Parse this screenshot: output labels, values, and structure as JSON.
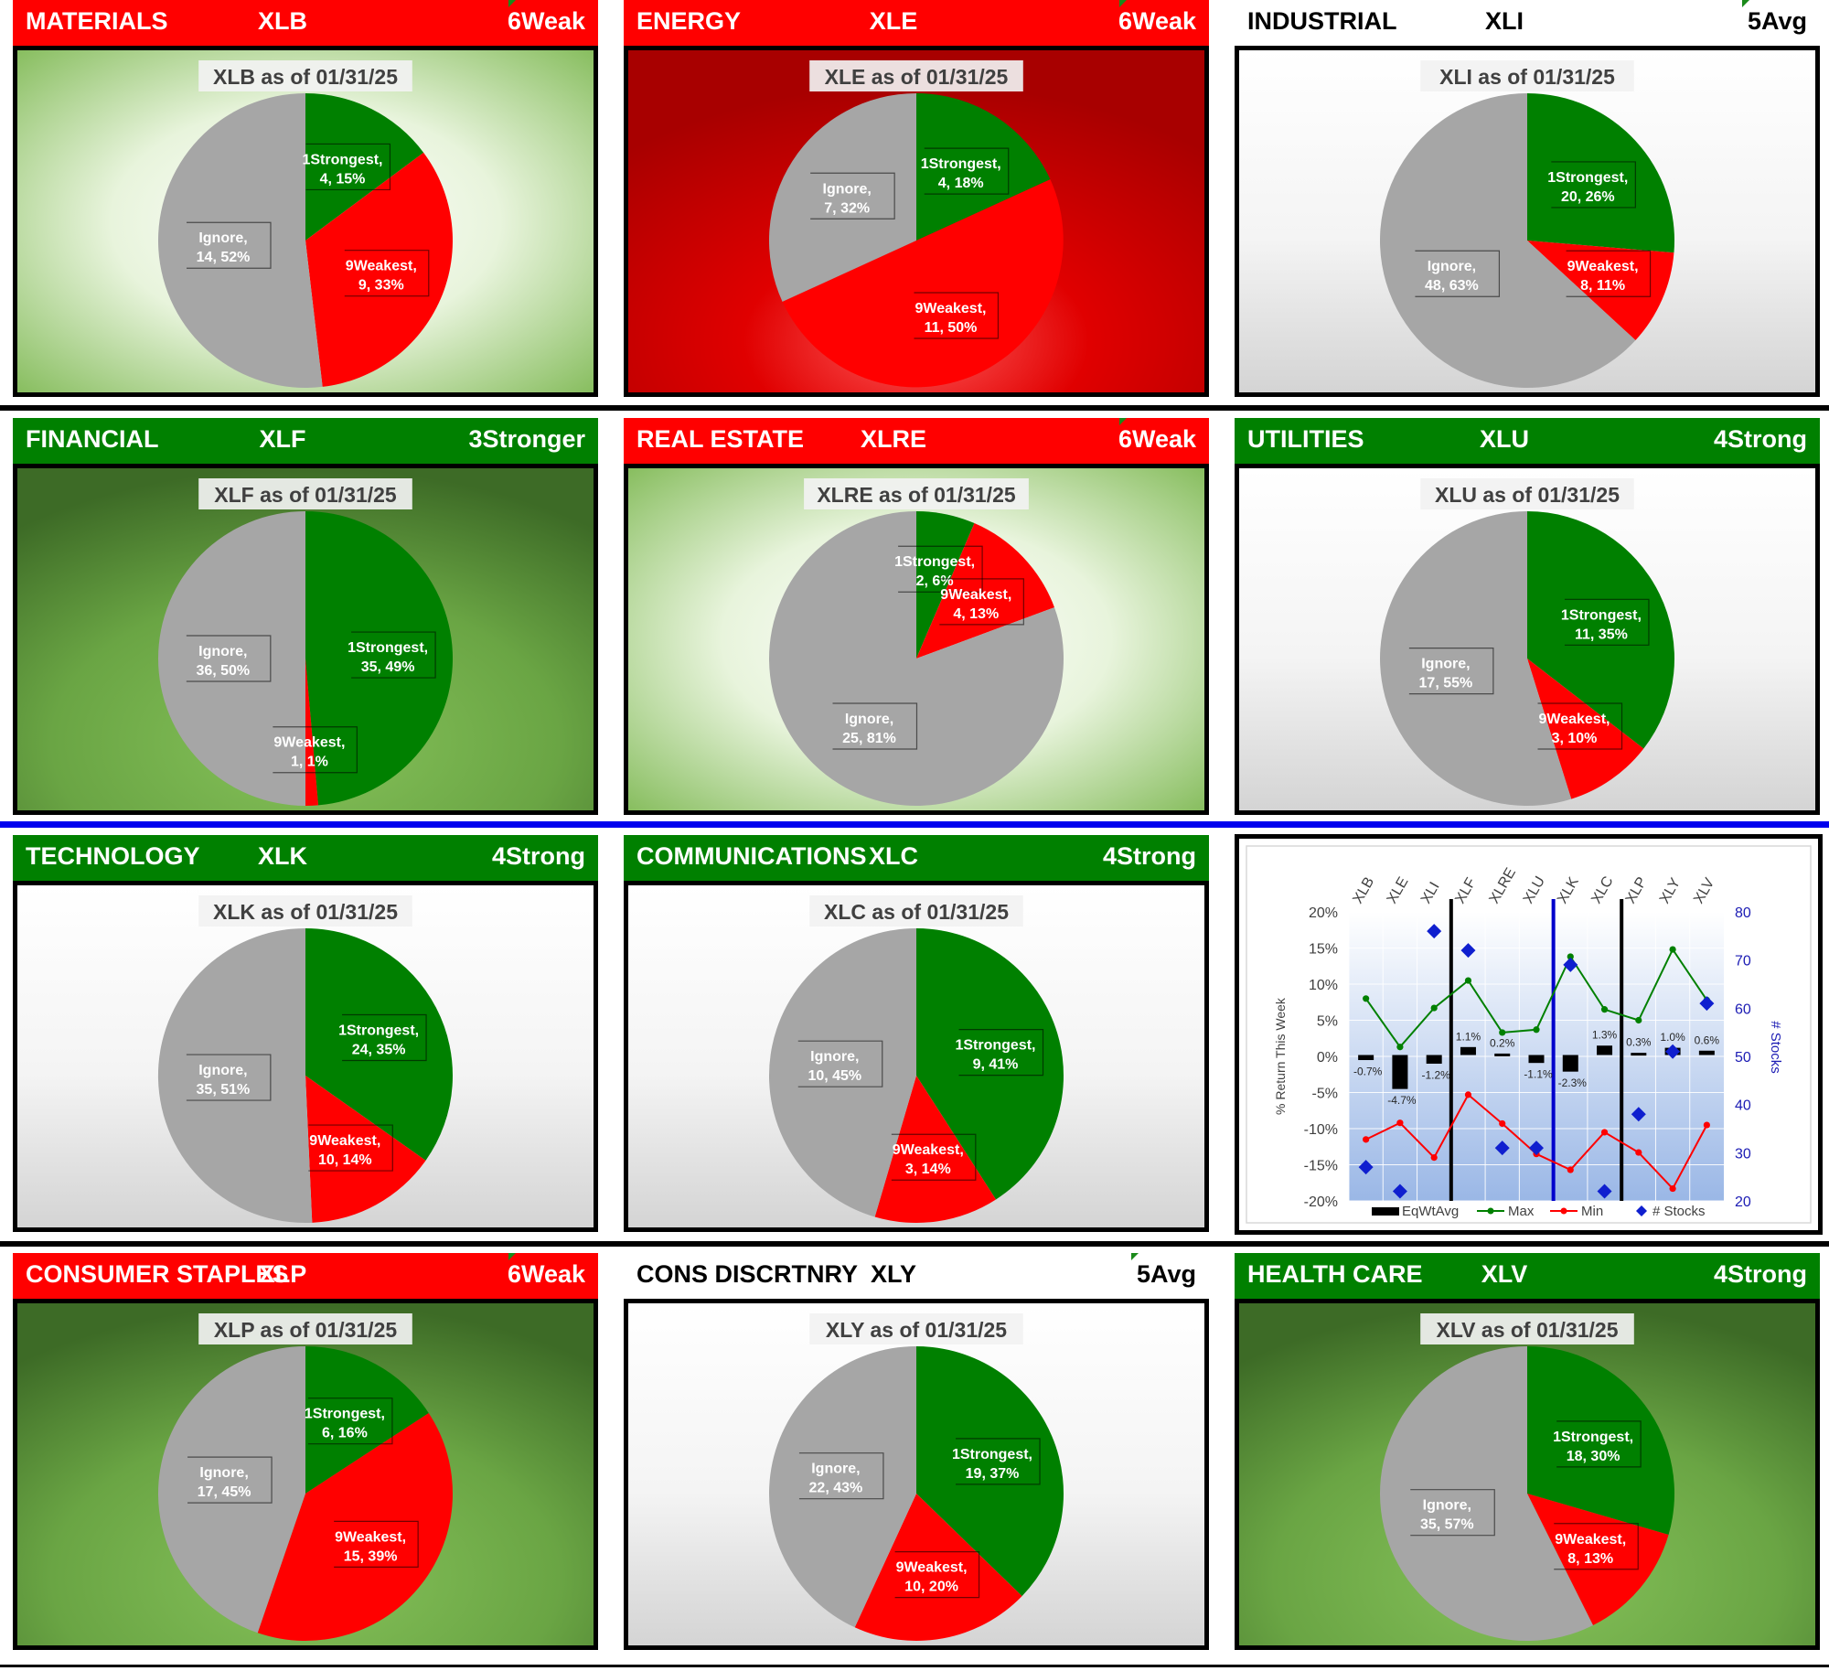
{
  "as_of_suffix": "as of 01/31/25",
  "colors": {
    "green": "#008000",
    "red": "#ff0000",
    "gray": "#a6a6a6",
    "blue": "#0000cc"
  },
  "sectors": [
    {
      "name": "MATERIALS",
      "ticker": "XLB",
      "rating": "6Weak",
      "header": "red",
      "title": "XLB as of 01/31/25",
      "bg": "lightgreen",
      "slices": [
        {
          "label": "1Strongest",
          "count": 4,
          "pct": "15%"
        },
        {
          "label": "9Weakest",
          "count": 9,
          "pct": "33%"
        },
        {
          "label": "Ignore",
          "count": 14,
          "pct": "52%"
        }
      ]
    },
    {
      "name": "ENERGY",
      "ticker": "XLE",
      "rating": "6Weak",
      "header": "red",
      "title": "XLE as of 01/31/25",
      "bg": "red",
      "slices": [
        {
          "label": "1Strongest",
          "count": 4,
          "pct": "18%"
        },
        {
          "label": "9Weakest",
          "count": 11,
          "pct": "50%"
        },
        {
          "label": "Ignore",
          "count": 7,
          "pct": "32%"
        }
      ]
    },
    {
      "name": "INDUSTRIAL",
      "ticker": "XLI",
      "rating": "5Avg",
      "header": "white",
      "title": "XLI as of 01/31/25",
      "bg": "white",
      "slices": [
        {
          "label": "1Strongest",
          "count": 20,
          "pct": "26%"
        },
        {
          "label": "9Weakest",
          "count": 8,
          "pct": "11%"
        },
        {
          "label": "Ignore",
          "count": 48,
          "pct": "63%"
        }
      ]
    },
    {
      "name": "FINANCIAL",
      "ticker": "XLF",
      "rating": "3Stronger",
      "header": "green",
      "title": "XLF as of 01/31/25",
      "bg": "darkgreen",
      "slices": [
        {
          "label": "1Strongest",
          "count": 35,
          "pct": "49%"
        },
        {
          "label": "9Weakest",
          "count": 1,
          "pct": "1%"
        },
        {
          "label": "Ignore",
          "count": 36,
          "pct": "50%"
        }
      ]
    },
    {
      "name": "REAL ESTATE",
      "ticker": "XLRE",
      "rating": "6Weak",
      "header": "red",
      "title": "XLRE as of 01/31/25",
      "bg": "lightgreen",
      "slices": [
        {
          "label": "1Strongest",
          "count": 2,
          "pct": "6%"
        },
        {
          "label": "9Weakest",
          "count": 4,
          "pct": "13%"
        },
        {
          "label": "Ignore",
          "count": 25,
          "pct": "81%"
        }
      ]
    },
    {
      "name": "UTILITIES",
      "ticker": "XLU",
      "rating": "4Strong",
      "header": "green",
      "title": "XLU as of 01/31/25",
      "bg": "white",
      "slices": [
        {
          "label": "1Strongest",
          "count": 11,
          "pct": "35%"
        },
        {
          "label": "9Weakest",
          "count": 3,
          "pct": "10%"
        },
        {
          "label": "Ignore",
          "count": 17,
          "pct": "55%"
        }
      ]
    },
    {
      "name": "TECHNOLOGY",
      "ticker": "XLK",
      "rating": "4Strong",
      "header": "green",
      "title": "XLK as of 01/31/25",
      "bg": "white",
      "slices": [
        {
          "label": "1Strongest",
          "count": 24,
          "pct": "35%"
        },
        {
          "label": "9Weakest",
          "count": 10,
          "pct": "14%"
        },
        {
          "label": "Ignore",
          "count": 35,
          "pct": "51%"
        }
      ]
    },
    {
      "name": "COMMUNICATIONS",
      "ticker": "XLC",
      "rating": "4Strong",
      "header": "green",
      "title": "XLC as of 01/31/25",
      "bg": "white",
      "slices": [
        {
          "label": "1Strongest",
          "count": 9,
          "pct": "41%"
        },
        {
          "label": "9Weakest",
          "count": 3,
          "pct": "14%"
        },
        {
          "label": "Ignore",
          "count": 10,
          "pct": "45%"
        }
      ]
    },
    {
      "name": "CONSUMER STAPLES",
      "ticker": "XLP",
      "rating": "6Weak",
      "header": "red",
      "title": "XLP as of 01/31/25",
      "bg": "darkgreen",
      "slices": [
        {
          "label": "1Strongest",
          "count": 6,
          "pct": "16%"
        },
        {
          "label": "9Weakest",
          "count": 15,
          "pct": "39%"
        },
        {
          "label": "Ignore",
          "count": 17,
          "pct": "45%"
        }
      ]
    },
    {
      "name": "CONS DISCRTNRY",
      "ticker": "XLY",
      "rating": "5Avg",
      "header": "white",
      "title": "XLY as of 01/31/25",
      "bg": "white",
      "slices": [
        {
          "label": "1Strongest",
          "count": 19,
          "pct": "37%"
        },
        {
          "label": "9Weakest",
          "count": 10,
          "pct": "20%"
        },
        {
          "label": "Ignore",
          "count": 22,
          "pct": "43%"
        }
      ]
    },
    {
      "name": "HEALTH CARE",
      "ticker": "XLV",
      "rating": "4Strong",
      "header": "green",
      "title": "XLV as of 01/31/25",
      "bg": "darkgreen",
      "slices": [
        {
          "label": "1Strongest",
          "count": 18,
          "pct": "30%"
        },
        {
          "label": "9Weakest",
          "count": 8,
          "pct": "13%"
        },
        {
          "label": "Ignore",
          "count": 35,
          "pct": "57%"
        }
      ]
    }
  ],
  "chart_data": [
    {
      "type": "pie",
      "title": "XLB as of 01/31/25",
      "categories": [
        "1Strongest",
        "9Weakest",
        "Ignore"
      ],
      "values": [
        4,
        9,
        14
      ]
    },
    {
      "type": "pie",
      "title": "XLE as of 01/31/25",
      "categories": [
        "1Strongest",
        "9Weakest",
        "Ignore"
      ],
      "values": [
        4,
        11,
        7
      ]
    },
    {
      "type": "pie",
      "title": "XLI as of 01/31/25",
      "categories": [
        "1Strongest",
        "9Weakest",
        "Ignore"
      ],
      "values": [
        20,
        8,
        48
      ]
    },
    {
      "type": "pie",
      "title": "XLF as of 01/31/25",
      "categories": [
        "1Strongest",
        "9Weakest",
        "Ignore"
      ],
      "values": [
        35,
        1,
        36
      ]
    },
    {
      "type": "pie",
      "title": "XLRE as of 01/31/25",
      "categories": [
        "1Strongest",
        "9Weakest",
        "Ignore"
      ],
      "values": [
        2,
        4,
        25
      ]
    },
    {
      "type": "pie",
      "title": "XLU as of 01/31/25",
      "categories": [
        "1Strongest",
        "9Weakest",
        "Ignore"
      ],
      "values": [
        11,
        3,
        17
      ]
    },
    {
      "type": "pie",
      "title": "XLK as of 01/31/25",
      "categories": [
        "1Strongest",
        "9Weakest",
        "Ignore"
      ],
      "values": [
        24,
        10,
        35
      ]
    },
    {
      "type": "pie",
      "title": "XLC as of 01/31/25",
      "categories": [
        "1Strongest",
        "9Weakest",
        "Ignore"
      ],
      "values": [
        9,
        3,
        10
      ]
    },
    {
      "type": "pie",
      "title": "XLP as of 01/31/25",
      "categories": [
        "1Strongest",
        "9Weakest",
        "Ignore"
      ],
      "values": [
        6,
        15,
        17
      ]
    },
    {
      "type": "pie",
      "title": "XLY as of 01/31/25",
      "categories": [
        "1Strongest",
        "9Weakest",
        "Ignore"
      ],
      "values": [
        19,
        10,
        22
      ]
    },
    {
      "type": "pie",
      "title": "XLV as of 01/31/25",
      "categories": [
        "1Strongest",
        "9Weakest",
        "Ignore"
      ],
      "values": [
        18,
        8,
        35
      ]
    },
    {
      "type": "combo",
      "categories": [
        "XLB",
        "XLE",
        "XLI",
        "XLF",
        "XLRE",
        "XLU",
        "XLK",
        "XLC",
        "XLP",
        "XLY",
        "XLV"
      ],
      "ylabel": "% Return This Week",
      "y2label": "# Stocks",
      "ylim": [
        -20,
        20
      ],
      "yticks": [
        "20%",
        "15%",
        "10%",
        "5%",
        "0%",
        "-5%",
        "-10%",
        "-15%",
        "-20%"
      ],
      "y2lim": [
        20,
        80
      ],
      "y2ticks": [
        "80",
        "70",
        "60",
        "50",
        "40",
        "30",
        "20"
      ],
      "dividers_after": [
        "XLI",
        "XLU",
        "XLC"
      ],
      "series": [
        {
          "name": "EqWtAvg",
          "type": "bar",
          "values": [
            -0.7,
            -4.7,
            -1.2,
            1.1,
            0.2,
            -1.1,
            -2.3,
            1.3,
            0.3,
            1.0,
            0.6
          ],
          "labels": [
            "-0.7%",
            "-4.7%",
            "-1.2%",
            "1.1%",
            "0.2%",
            "-1.1%",
            "-2.3%",
            "1.3%",
            "0.3%",
            "1.0%",
            "0.6%"
          ]
        },
        {
          "name": "Max",
          "type": "line",
          "values": [
            8,
            1.3,
            6.7,
            10.5,
            3.3,
            3.7,
            13.8,
            6.5,
            5,
            14.8,
            7.8
          ]
        },
        {
          "name": "Min",
          "type": "line",
          "values": [
            -11.5,
            -9.2,
            -14,
            -5.3,
            -9.3,
            -13.5,
            -15.7,
            -10.5,
            -13.3,
            -18.3,
            -9.5
          ]
        },
        {
          "name": "# Stocks",
          "type": "scatter",
          "axis": "y2",
          "values": [
            27,
            22,
            76,
            72,
            31,
            31,
            69,
            22,
            38,
            51,
            61
          ]
        }
      ]
    }
  ]
}
